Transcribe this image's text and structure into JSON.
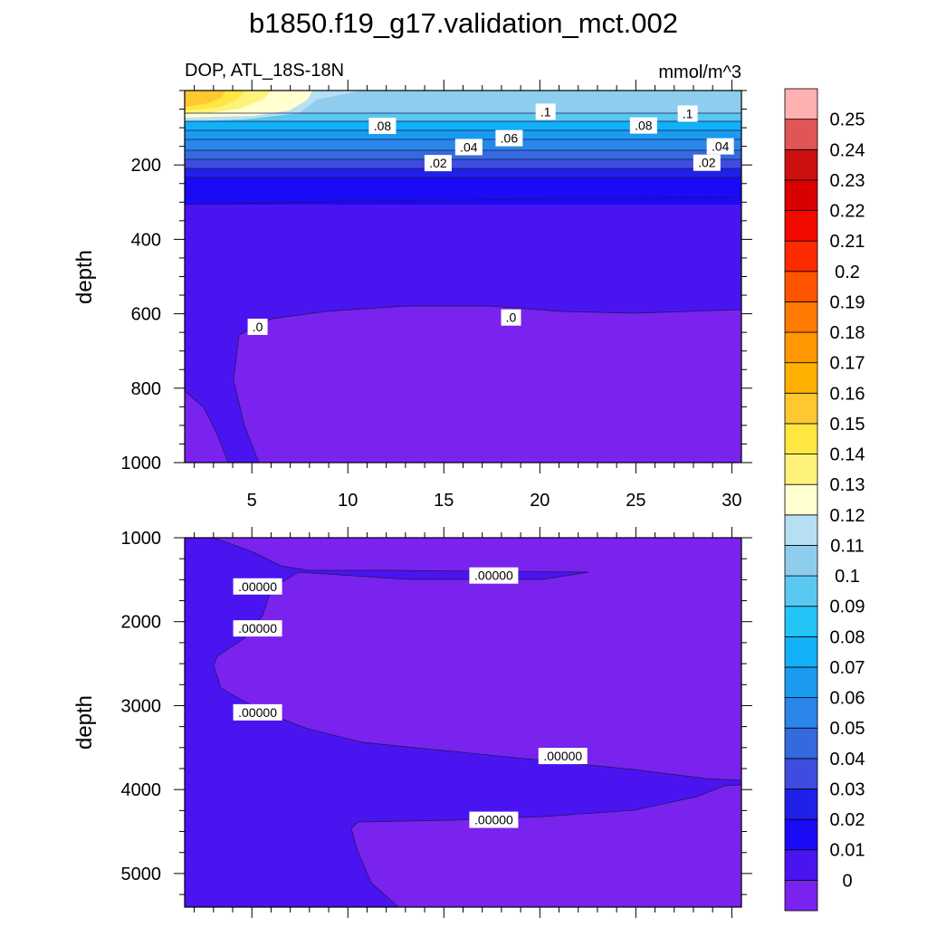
{
  "chart_data": {
    "type": "contour",
    "title": "b1850.f19_g17.validation_mct.002",
    "subtitle_left": "DOP, ATL_18S-18N",
    "subtitle_right": "mmol/m^3",
    "colorbar": {
      "levels": [
        "0",
        "0.01",
        "0.02",
        "0.03",
        "0.04",
        "0.05",
        "0.06",
        "0.07",
        "0.08",
        "0.09",
        "0.1",
        "0.11",
        "0.12",
        "0.13",
        "0.14",
        "0.15",
        "0.16",
        "0.17",
        "0.18",
        "0.19",
        "0.2",
        "0.21",
        "0.22",
        "0.23",
        "0.24",
        "0.25"
      ],
      "colors": [
        "#7a22ee",
        "#4a14f0",
        "#1a0af5",
        "#2020e8",
        "#3f4ce0",
        "#356adf",
        "#2a86e8",
        "#1a9bef",
        "#12b0f6",
        "#25c4f7",
        "#5bc8f1",
        "#8fcdee",
        "#b7dff4",
        "#ffffd0",
        "#fff27a",
        "#ffe640",
        "#ffc830",
        "#ffb000",
        "#ff9700",
        "#ff7a00",
        "#ff5500",
        "#ff2a00",
        "#f20a00",
        "#d90000",
        "#cc1010",
        "#e05555",
        "#ffb0b0"
      ]
    },
    "panels": [
      {
        "name": "upper-ocean",
        "xlim": [
          1.5,
          30.5
        ],
        "ylim": [
          1000,
          0
        ],
        "xticks": [
          5,
          10,
          15,
          20,
          25,
          30
        ],
        "yticks": [
          200,
          400,
          600,
          800,
          1000
        ],
        "ylabel": "depth",
        "contour_labels": [
          {
            "text": ".08",
            "x": 11.8,
            "y": 95
          },
          {
            "text": ".1",
            "x": 20.3,
            "y": 57
          },
          {
            "text": ".06",
            "x": 18.4,
            "y": 128
          },
          {
            "text": ".04",
            "x": 16.3,
            "y": 152
          },
          {
            "text": ".08",
            "x": 25.4,
            "y": 94
          },
          {
            "text": ".1",
            "x": 27.7,
            "y": 62
          },
          {
            "text": ".04",
            "x": 29.4,
            "y": 150
          },
          {
            "text": ".02",
            "x": 14.7,
            "y": 195
          },
          {
            "text": ".02",
            "x": 28.7,
            "y": 194
          },
          {
            "text": ".0",
            "x": 18.5,
            "y": 610
          },
          {
            "text": ".0",
            "x": 5.3,
            "y": 635
          }
        ]
      },
      {
        "name": "deep-ocean",
        "xlim": [
          1.5,
          30.5
        ],
        "ylim": [
          5400,
          1000
        ],
        "yticks": [
          1000,
          2000,
          3000,
          4000,
          5000
        ],
        "ylabel": "depth",
        "contour_labels": [
          {
            "text": ".00000",
            "x": 5.3,
            "y": 1580
          },
          {
            "text": ".00000",
            "x": 17.6,
            "y": 1450
          },
          {
            "text": ".00000",
            "x": 5.3,
            "y": 2080
          },
          {
            "text": ".00000",
            "x": 5.3,
            "y": 3080
          },
          {
            "text": ".00000",
            "x": 21.2,
            "y": 3600
          },
          {
            "text": ".00000",
            "x": 17.6,
            "y": 4360
          }
        ]
      }
    ]
  }
}
